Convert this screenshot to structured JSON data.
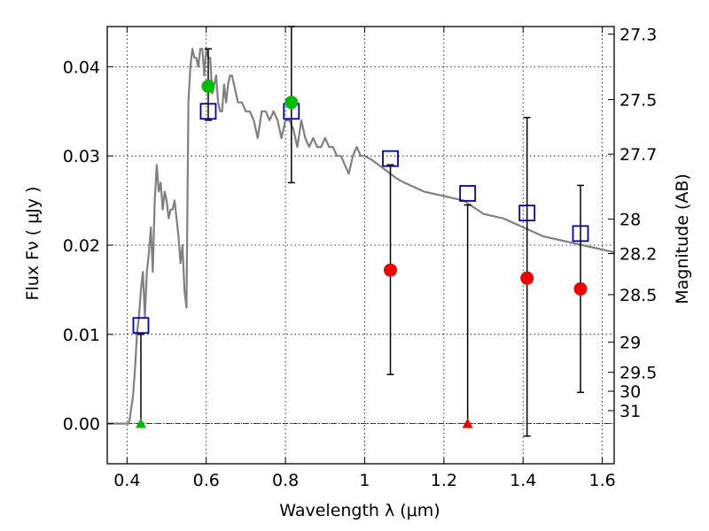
{
  "chart_data": {
    "type": "scatter",
    "xlabel": "Wavelength  λ (μm)",
    "ylabel_left": "Flux  Fν  ( μJy )",
    "ylabel_right": "Magnitude (AB)",
    "xlim": [
      0.35,
      1.63
    ],
    "ylim": [
      -0.0045,
      0.0445
    ],
    "grid": true,
    "x_ticks": [
      {
        "value": 0.4,
        "label": "0.4"
      },
      {
        "value": 0.6,
        "label": "0.6"
      },
      {
        "value": 0.8,
        "label": "0.8"
      },
      {
        "value": 1.0,
        "label": "1"
      },
      {
        "value": 1.2,
        "label": "1.2"
      },
      {
        "value": 1.4,
        "label": "1.4"
      },
      {
        "value": 1.6,
        "label": "1.6"
      }
    ],
    "y_ticks": [
      {
        "value": 0.0,
        "label": "0.00"
      },
      {
        "value": 0.01,
        "label": "0.01"
      },
      {
        "value": 0.02,
        "label": "0.02"
      },
      {
        "value": 0.03,
        "label": "0.03"
      },
      {
        "value": 0.04,
        "label": "0.04"
      }
    ],
    "magnitude_ticks": [
      {
        "flux": 0.04365,
        "label": "27.3"
      },
      {
        "flux": 0.03631,
        "label": "27.5"
      },
      {
        "flux": 0.0302,
        "label": "27.7"
      },
      {
        "flux": 0.02291,
        "label": "28"
      },
      {
        "flux": 0.01905,
        "label": "28.2"
      },
      {
        "flux": 0.01445,
        "label": "28.5"
      },
      {
        "flux": 0.00912,
        "label": "29"
      },
      {
        "flux": 0.00575,
        "label": "29.5"
      },
      {
        "flux": 0.00363,
        "label": "30"
      },
      {
        "flux": 0.00145,
        "label": "31"
      }
    ],
    "series": [
      {
        "kind": "line",
        "color": "#808080",
        "x": [
          0.35,
          0.405,
          0.415,
          0.42,
          0.425,
          0.43,
          0.435,
          0.44,
          0.445,
          0.45,
          0.455,
          0.46,
          0.465,
          0.47,
          0.475,
          0.48,
          0.485,
          0.49,
          0.495,
          0.5,
          0.505,
          0.51,
          0.515,
          0.52,
          0.525,
          0.53,
          0.535,
          0.54,
          0.545,
          0.55,
          0.555,
          0.56,
          0.565,
          0.57,
          0.575,
          0.58,
          0.585,
          0.59,
          0.595,
          0.6,
          0.605,
          0.61,
          0.615,
          0.62,
          0.625,
          0.63,
          0.635,
          0.64,
          0.645,
          0.65,
          0.655,
          0.66,
          0.665,
          0.67,
          0.68,
          0.69,
          0.7,
          0.71,
          0.72,
          0.73,
          0.74,
          0.75,
          0.76,
          0.77,
          0.78,
          0.79,
          0.8,
          0.81,
          0.82,
          0.83,
          0.84,
          0.85,
          0.86,
          0.87,
          0.88,
          0.89,
          0.9,
          0.91,
          0.92,
          0.93,
          0.94,
          0.95,
          0.96,
          0.97,
          0.98,
          0.99,
          1.0,
          1.02,
          1.05,
          1.08,
          1.1,
          1.15,
          1.2,
          1.25,
          1.3,
          1.35,
          1.4,
          1.45,
          1.5,
          1.55,
          1.6,
          1.63
        ],
        "y": [
          0.0,
          0.0,
          0.003,
          0.006,
          0.01,
          0.012,
          0.015,
          0.017,
          0.012,
          0.017,
          0.019,
          0.022,
          0.017,
          0.025,
          0.029,
          0.026,
          0.027,
          0.024,
          0.026,
          0.025,
          0.023,
          0.024,
          0.024,
          0.025,
          0.023,
          0.021,
          0.018,
          0.02,
          0.015,
          0.013,
          0.036,
          0.04,
          0.042,
          0.041,
          0.041,
          0.04,
          0.042,
          0.042,
          0.039,
          0.042,
          0.041,
          0.041,
          0.037,
          0.038,
          0.039,
          0.036,
          0.035,
          0.035,
          0.038,
          0.036,
          0.038,
          0.039,
          0.039,
          0.038,
          0.036,
          0.036,
          0.035,
          0.035,
          0.034,
          0.032,
          0.035,
          0.035,
          0.034,
          0.035,
          0.034,
          0.032,
          0.034,
          0.034,
          0.033,
          0.031,
          0.034,
          0.032,
          0.031,
          0.032,
          0.031,
          0.031,
          0.032,
          0.031,
          0.031,
          0.03,
          0.03,
          0.029,
          0.028,
          0.03,
          0.031,
          0.03,
          0.03,
          0.0295,
          0.0285,
          0.0275,
          0.027,
          0.026,
          0.0255,
          0.025,
          0.0235,
          0.023,
          0.022,
          0.021,
          0.0205,
          0.02,
          0.0195,
          0.0192
        ]
      },
      {
        "kind": "points",
        "marker": "open-square",
        "color": "#0000aa",
        "x": [
          0.435,
          0.605,
          0.815,
          1.065,
          1.26,
          1.41,
          1.545
        ],
        "y": [
          0.011,
          0.035,
          0.035,
          0.0297,
          0.0258,
          0.0236,
          0.0213
        ]
      },
      {
        "kind": "points",
        "marker": "circle",
        "color": "#00bb00",
        "x": [
          0.605,
          0.815
        ],
        "y": [
          0.0378,
          0.036
        ]
      },
      {
        "kind": "points",
        "marker": "circle",
        "color": "#ee0000",
        "x": [
          1.065,
          1.41,
          1.545
        ],
        "y": [
          0.0172,
          0.0163,
          0.0151
        ]
      },
      {
        "kind": "points",
        "marker": "triangle",
        "color": "#00bb00",
        "x": [
          0.435
        ],
        "y": [
          0.0
        ]
      },
      {
        "kind": "points",
        "marker": "triangle",
        "color": "#ee0000",
        "x": [
          1.26
        ],
        "y": [
          0.0
        ]
      }
    ],
    "errorbars": [
      {
        "x": 0.435,
        "low": 0.0,
        "high": 0.01
      },
      {
        "x": 0.605,
        "low": 0.034,
        "high": 0.042
      },
      {
        "x": 0.815,
        "low": 0.027,
        "high": 0.0445
      },
      {
        "x": 1.065,
        "low": 0.0055,
        "high": 0.029
      },
      {
        "x": 1.26,
        "low": 0.0,
        "high": 0.0245
      },
      {
        "x": 1.41,
        "low": -0.0014,
        "high": 0.0343
      },
      {
        "x": 1.545,
        "low": 0.0035,
        "high": 0.0267
      }
    ]
  }
}
